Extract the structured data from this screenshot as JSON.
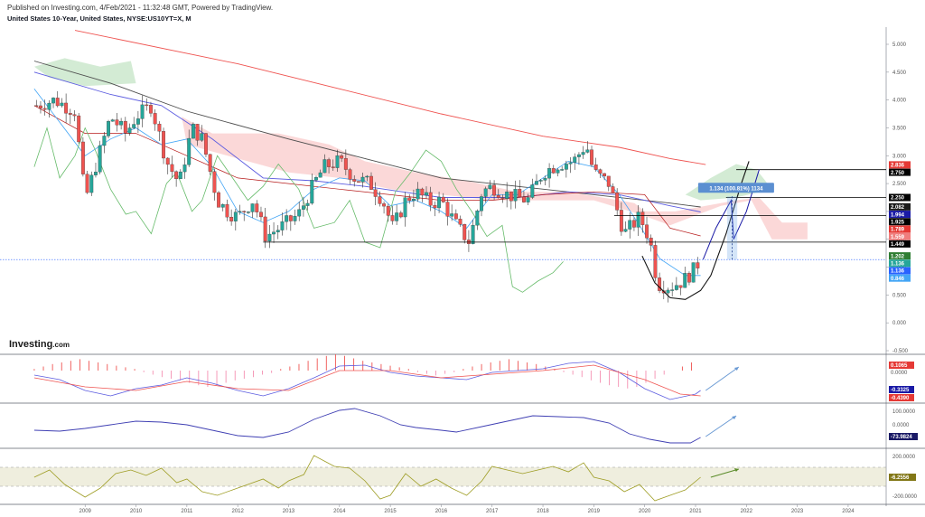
{
  "header": {
    "publish_line": "Published on Investing.com, 4/Feb/2021 - 11:32:48 GMT, Powered by TradingView.",
    "symbol_line": "United States 10-Year, United States, NYSE:US10YT=X, M"
  },
  "watermark": {
    "brand": "Investing",
    "suffix": ".com"
  },
  "measure_label": "1.134 (100.81%) 1134",
  "chart_data": [
    {
      "type": "candlestick",
      "yscale": [
        -0.5,
        5.0
      ],
      "yticks": [
        "5.000",
        "4.500",
        "4.000",
        "3.500",
        "3.000",
        "2.500",
        "2.000",
        "1.500",
        "1.000",
        "0.500",
        "0.000",
        "-0.500"
      ],
      "xticks": [
        "2009",
        "2010",
        "2011",
        "2012",
        "2013",
        "2014",
        "2015",
        "2016",
        "2017",
        "2018",
        "2019",
        "2020",
        "2021",
        "2022",
        "2023",
        "2024"
      ],
      "x_domain": [
        2008.0,
        2024.75
      ],
      "horizontal_levels": [
        2.75,
        2.25,
        1.925,
        1.449,
        1.136
      ],
      "price_tags": [
        {
          "text": "2.836",
          "value": 2.836,
          "color": "#e53935"
        },
        {
          "text": "2.750",
          "value": 2.75,
          "color": "#000000"
        },
        {
          "text": "2.250",
          "value": 2.25,
          "color": "#000000"
        },
        {
          "text": "2.082",
          "value": 2.082,
          "color": "#1a1a1a"
        },
        {
          "text": "1.994",
          "value": 1.994,
          "color": "#1a1aa6"
        },
        {
          "text": "1.925",
          "value": 1.925,
          "color": "#000000"
        },
        {
          "text": "1.789",
          "value": 1.789,
          "color": "#e53935"
        },
        {
          "text": "1.559",
          "value": 1.559,
          "color": "#ef7d7d"
        },
        {
          "text": "1.449",
          "value": 1.449,
          "color": "#000000"
        },
        {
          "text": "1.202",
          "value": 1.202,
          "color": "#2e7d32"
        },
        {
          "text": "1.136",
          "value": 1.136,
          "color": "#26a69a"
        },
        {
          "text": "1.136",
          "value": 1.136,
          "color": "#2962ff"
        },
        {
          "text": "0.846",
          "value": 0.846,
          "color": "#42a5f5"
        }
      ],
      "price_anchors": [
        [
          2008.05,
          3.9
        ],
        [
          2008.4,
          4.0
        ],
        [
          2008.8,
          3.8
        ],
        [
          2009.0,
          2.2
        ],
        [
          2009.2,
          2.8
        ],
        [
          2009.5,
          3.7
        ],
        [
          2009.8,
          3.4
        ],
        [
          2010.0,
          3.7
        ],
        [
          2010.3,
          3.9
        ],
        [
          2010.6,
          2.9
        ],
        [
          2010.85,
          2.5
        ],
        [
          2011.1,
          3.5
        ],
        [
          2011.3,
          3.3
        ],
        [
          2011.6,
          2.2
        ],
        [
          2011.8,
          2.0
        ],
        [
          2012.0,
          1.9
        ],
        [
          2012.3,
          2.2
        ],
        [
          2012.55,
          1.55
        ],
        [
          2012.9,
          1.75
        ],
        [
          2013.2,
          1.95
        ],
        [
          2013.5,
          2.5
        ],
        [
          2013.7,
          2.8
        ],
        [
          2014.0,
          2.9
        ],
        [
          2014.3,
          2.6
        ],
        [
          2014.6,
          2.5
        ],
        [
          2014.85,
          2.2
        ],
        [
          2015.05,
          1.7
        ],
        [
          2015.3,
          2.2
        ],
        [
          2015.5,
          2.35
        ],
        [
          2015.8,
          2.15
        ],
        [
          2016.0,
          2.2
        ],
        [
          2016.3,
          1.75
        ],
        [
          2016.55,
          1.45
        ],
        [
          2016.8,
          2.35
        ],
        [
          2017.0,
          2.45
        ],
        [
          2017.3,
          2.3
        ],
        [
          2017.7,
          2.2
        ],
        [
          2018.0,
          2.7
        ],
        [
          2018.3,
          2.85
        ],
        [
          2018.6,
          2.9
        ],
        [
          2018.85,
          3.2
        ],
        [
          2019.0,
          2.7
        ],
        [
          2019.3,
          2.5
        ],
        [
          2019.6,
          1.6
        ],
        [
          2019.9,
          1.9
        ],
        [
          2020.1,
          1.5
        ],
        [
          2020.25,
          0.7
        ],
        [
          2020.5,
          0.65
        ],
        [
          2020.75,
          0.75
        ],
        [
          2020.95,
          0.93
        ],
        [
          2021.1,
          1.14
        ]
      ],
      "indicator_lines": {
        "sma_red": [
          [
            2008.8,
            5.25
          ],
          [
            2012.0,
            4.65
          ],
          [
            2014.0,
            4.2
          ],
          [
            2016.0,
            3.75
          ],
          [
            2018.0,
            3.35
          ],
          [
            2019.5,
            3.15
          ],
          [
            2020.5,
            2.95
          ],
          [
            2021.2,
            2.84
          ]
        ],
        "sma_dark": [
          [
            2008.0,
            4.7
          ],
          [
            2009.5,
            4.3
          ],
          [
            2011.0,
            3.8
          ],
          [
            2013.0,
            3.3
          ],
          [
            2014.5,
            2.95
          ],
          [
            2016.0,
            2.6
          ],
          [
            2017.5,
            2.45
          ],
          [
            2019.0,
            2.3
          ],
          [
            2020.5,
            2.15
          ],
          [
            2021.1,
            2.08
          ]
        ],
        "sma_blue": [
          [
            2008.0,
            4.5
          ],
          [
            2009.5,
            4.1
          ],
          [
            2010.5,
            3.9
          ],
          [
            2011.5,
            3.3
          ],
          [
            2012.5,
            2.6
          ],
          [
            2013.5,
            2.55
          ],
          [
            2014.5,
            2.45
          ],
          [
            2016.0,
            2.25
          ],
          [
            2017.5,
            2.25
          ],
          [
            2018.5,
            2.35
          ],
          [
            2019.5,
            2.3
          ],
          [
            2020.5,
            2.1
          ],
          [
            2021.1,
            1.99
          ]
        ],
        "tenkan": [
          [
            2008.0,
            4.2
          ],
          [
            2008.5,
            3.6
          ],
          [
            2009.0,
            3.0
          ],
          [
            2009.5,
            3.3
          ],
          [
            2010.0,
            3.5
          ],
          [
            2010.5,
            3.2
          ],
          [
            2011.0,
            3.3
          ],
          [
            2011.5,
            2.8
          ],
          [
            2012.0,
            2.0
          ],
          [
            2012.5,
            1.8
          ],
          [
            2013.0,
            2.0
          ],
          [
            2013.5,
            2.4
          ],
          [
            2014.0,
            2.6
          ],
          [
            2014.5,
            2.55
          ],
          [
            2015.0,
            2.1
          ],
          [
            2015.5,
            2.2
          ],
          [
            2016.0,
            2.0
          ],
          [
            2016.5,
            1.7
          ],
          [
            2017.0,
            2.3
          ],
          [
            2017.5,
            2.3
          ],
          [
            2018.0,
            2.6
          ],
          [
            2018.5,
            2.9
          ],
          [
            2019.0,
            2.8
          ],
          [
            2019.5,
            2.3
          ],
          [
            2019.9,
            1.75
          ],
          [
            2020.3,
            1.15
          ],
          [
            2020.8,
            0.85
          ],
          [
            2021.1,
            0.85
          ]
        ],
        "kijun": [
          [
            2008.0,
            3.9
          ],
          [
            2009.0,
            3.4
          ],
          [
            2010.0,
            3.4
          ],
          [
            2011.0,
            3.0
          ],
          [
            2012.0,
            2.6
          ],
          [
            2013.0,
            2.5
          ],
          [
            2014.0,
            2.4
          ],
          [
            2015.0,
            2.3
          ],
          [
            2016.0,
            2.2
          ],
          [
            2017.0,
            2.2
          ],
          [
            2018.0,
            2.3
          ],
          [
            2019.0,
            2.35
          ],
          [
            2020.0,
            2.3
          ],
          [
            2020.5,
            1.7
          ],
          [
            2021.1,
            1.56
          ]
        ],
        "chikou": [
          [
            2008.0,
            2.8
          ],
          [
            2008.25,
            3.5
          ],
          [
            2008.5,
            2.6
          ],
          [
            2008.8,
            3.0
          ],
          [
            2009.0,
            3.5
          ],
          [
            2009.2,
            3.1
          ],
          [
            2009.5,
            2.4
          ],
          [
            2009.8,
            1.95
          ],
          [
            2010.0,
            2.0
          ],
          [
            2010.3,
            1.6
          ],
          [
            2010.6,
            2.5
          ],
          [
            2010.8,
            2.7
          ],
          [
            2011.1,
            2.0
          ],
          [
            2011.3,
            2.2
          ],
          [
            2011.6,
            3.0
          ],
          [
            2011.9,
            2.6
          ],
          [
            2012.2,
            2.2
          ],
          [
            2012.5,
            2.45
          ],
          [
            2012.8,
            2.85
          ],
          [
            2013.2,
            2.4
          ],
          [
            2013.5,
            1.7
          ],
          [
            2013.9,
            1.8
          ],
          [
            2014.2,
            2.2
          ],
          [
            2014.5,
            1.45
          ],
          [
            2014.8,
            1.35
          ],
          [
            2015.1,
            2.35
          ],
          [
            2015.4,
            2.7
          ],
          [
            2015.7,
            3.1
          ],
          [
            2016.0,
            2.9
          ],
          [
            2016.3,
            2.4
          ],
          [
            2016.6,
            2.0
          ],
          [
            2016.9,
            1.55
          ],
          [
            2017.2,
            1.75
          ],
          [
            2017.4,
            0.65
          ],
          [
            2017.6,
            0.55
          ],
          [
            2017.9,
            0.75
          ],
          [
            2018.2,
            0.9
          ],
          [
            2018.4,
            1.1
          ]
        ],
        "bb_arc": [
          [
            2019.95,
            1.2
          ],
          [
            2020.2,
            0.72
          ],
          [
            2020.5,
            0.45
          ],
          [
            2020.8,
            0.42
          ],
          [
            2021.1,
            0.58
          ],
          [
            2021.3,
            0.85
          ],
          [
            2021.6,
            1.6
          ],
          [
            2021.9,
            2.5
          ],
          [
            2022.05,
            2.9
          ]
        ]
      },
      "projection_path": [
        [
          2021.15,
          1.14
        ],
        [
          2021.4,
          1.7
        ],
        [
          2021.7,
          2.2
        ],
        [
          2021.75,
          1.5
        ],
        [
          2022.0,
          2.0
        ],
        [
          2022.25,
          2.75
        ]
      ],
      "measure": {
        "x0": 2021.62,
        "x1": 2021.82,
        "y0": 1.136,
        "y1": 2.27
      },
      "cloud_red": [
        [
          2010.9,
          3.7
        ],
        [
          2011.5,
          3.4
        ],
        [
          2012.8,
          3.4
        ],
        [
          2013.8,
          3.2
        ],
        [
          2014.5,
          2.9
        ],
        [
          2015.5,
          2.7
        ],
        [
          2016.5,
          2.55
        ],
        [
          2017.5,
          2.35
        ],
        [
          2018.5,
          2.35
        ],
        [
          2019.5,
          2.2
        ],
        [
          2019.8,
          2.15
        ],
        [
          2020.0,
          2.0
        ],
        [
          2020.6,
          2.0
        ],
        [
          2021.2,
          2.1
        ],
        [
          2021.8,
          2.2
        ],
        [
          2022.25,
          2.25
        ],
        [
          2022.7,
          1.8
        ],
        [
          2023.2,
          1.8
        ],
        [
          2023.2,
          1.5
        ],
        [
          2022.5,
          1.5
        ],
        [
          2022.1,
          2.2
        ],
        [
          2021.5,
          2.1
        ],
        [
          2020.5,
          1.75
        ],
        [
          2019.9,
          1.95
        ],
        [
          2019.0,
          2.2
        ],
        [
          2018.0,
          2.2
        ],
        [
          2017.0,
          2.2
        ],
        [
          2016.0,
          2.3
        ],
        [
          2015.0,
          2.4
        ],
        [
          2014.0,
          2.6
        ],
        [
          2013.0,
          2.7
        ],
        [
          2012.0,
          2.95
        ],
        [
          2011.0,
          3.2
        ]
      ],
      "cloud_green": [
        [
          2008.0,
          4.6
        ],
        [
          2008.6,
          4.75
        ],
        [
          2009.3,
          4.6
        ],
        [
          2009.9,
          4.7
        ],
        [
          2010.0,
          4.3
        ],
        [
          2009.0,
          4.25
        ],
        [
          2008.3,
          4.4
        ]
      ],
      "cloud_green_recent": [
        [
          2020.8,
          2.3
        ],
        [
          2021.3,
          2.6
        ],
        [
          2021.8,
          2.85
        ],
        [
          2022.2,
          2.75
        ],
        [
          2022.5,
          2.4
        ],
        [
          2021.8,
          2.25
        ],
        [
          2021.1,
          2.2
        ]
      ]
    },
    {
      "type": "macd",
      "ytick_labels": [
        "0.1065",
        "0.0000",
        "-0.3325",
        "-0.4390"
      ],
      "hist": [
        0.02,
        0.05,
        0.08,
        0.1,
        0.12,
        0.14,
        0.12,
        0.1,
        0.08,
        0.06,
        0.04,
        0.02,
        -0.02,
        -0.05,
        -0.08,
        -0.1,
        -0.12,
        -0.15,
        -0.18,
        -0.2,
        -0.18,
        -0.15,
        -0.12,
        -0.1,
        -0.08,
        -0.05,
        -0.03,
        0.02,
        0.05,
        0.08,
        0.12,
        0.15,
        0.18,
        0.2,
        0.18,
        0.15,
        0.12,
        0.1,
        0.08,
        0.06,
        0.04,
        0.02,
        -0.02,
        -0.04,
        -0.06,
        -0.04,
        -0.02,
        0.02,
        0.05,
        0.08,
        0.1,
        0.12,
        0.14,
        0.12,
        0.1,
        0.08,
        0.05,
        0.02,
        -0.02,
        -0.05,
        -0.08,
        -0.12,
        -0.15,
        -0.18,
        -0.2,
        -0.22,
        -0.2,
        -0.15,
        -0.1,
        -0.05,
        0.0,
        0.05,
        0.1
      ]
    },
    {
      "type": "oscillator",
      "ytick_labels": [
        "100.0000",
        "0.0000",
        "-73.9824"
      ]
    },
    {
      "type": "cci",
      "ytick_labels": [
        "200.0000",
        "-6.2556",
        "-200.0000"
      ]
    }
  ]
}
